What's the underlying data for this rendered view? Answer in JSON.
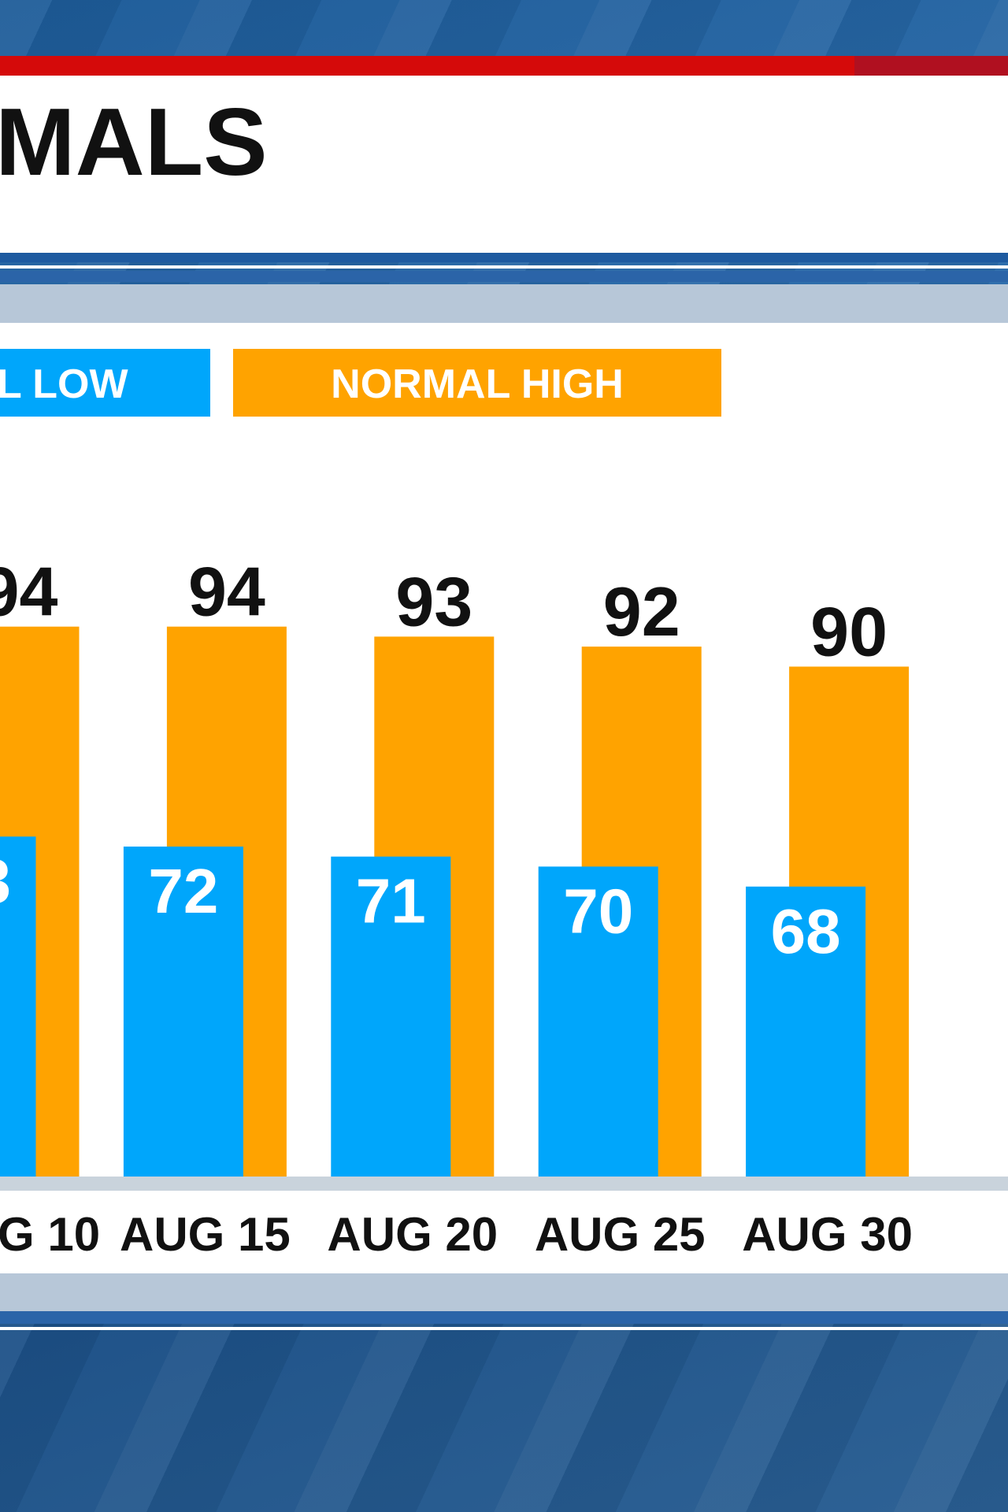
{
  "chart_data": {
    "type": "bar",
    "title": "MALS",
    "categories": [
      "G 10",
      "AUG 15",
      "AUG 20",
      "AUG 25",
      "AUG 30"
    ],
    "series": [
      {
        "name": "L LOW",
        "color": "#00a6fb",
        "values": [
          73,
          72,
          71,
          70,
          68
        ]
      },
      {
        "name": "NORMAL HIGH",
        "color": "#ffa300",
        "values": [
          94,
          94,
          93,
          92,
          90
        ]
      }
    ],
    "ylim": [
      39,
      95
    ]
  }
}
